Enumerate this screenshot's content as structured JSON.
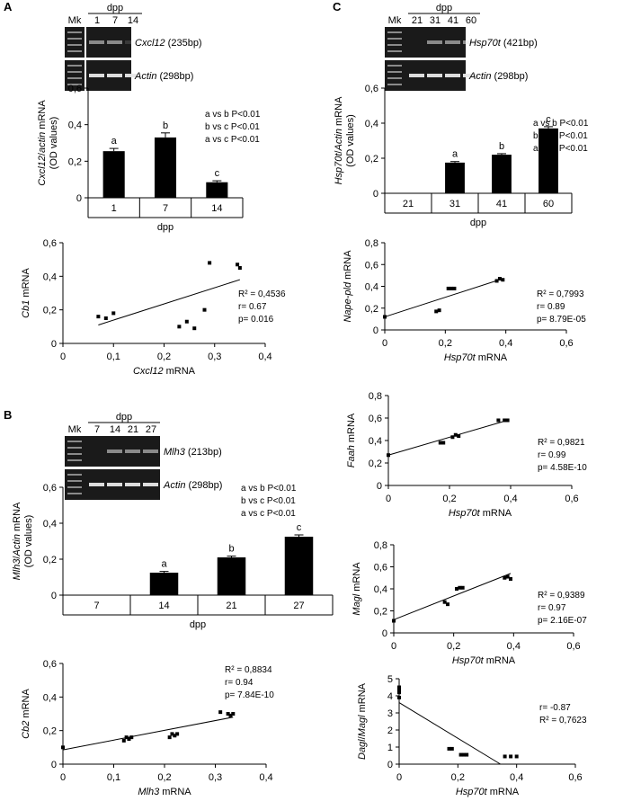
{
  "panels": {
    "a": "A",
    "b": "B",
    "c": "C"
  },
  "gels": [
    {
      "id": "gel-cxcl12",
      "marker": "Mk",
      "header": "dpp",
      "lanes": [
        "1",
        "7",
        "14"
      ],
      "bands": [
        {
          "gene": "Cxcl12",
          "size": " (235bp)"
        },
        {
          "gene": "Actin",
          "size": " (298bp)"
        }
      ]
    },
    {
      "id": "gel-mlh3",
      "marker": "Mk",
      "header": "dpp",
      "lanes": [
        "7",
        "14",
        "21",
        "27"
      ],
      "bands": [
        {
          "gene": "Mlh3",
          "size": " (213bp)"
        },
        {
          "gene": "Actin",
          "size": " (298bp)"
        }
      ]
    },
    {
      "id": "gel-hsp70t",
      "marker": "Mk",
      "header": "dpp",
      "lanes": [
        "21",
        "31",
        "41",
        "60"
      ],
      "bands": [
        {
          "gene": "Hsp70t",
          "size": " (421bp)"
        },
        {
          "gene": "Actin",
          "size": " (298bp)"
        }
      ]
    }
  ],
  "chart_data": [
    {
      "id": "bar-cxcl12",
      "type": "bar",
      "categories": [
        "1",
        "7",
        "14"
      ],
      "values": [
        0.255,
        0.33,
        0.085
      ],
      "errors": [
        0.015,
        0.025,
        0.008
      ],
      "letters": [
        "a",
        "b",
        "c"
      ],
      "xlabel": "dpp",
      "ylabel": [
        {
          "t": "Cxcl12",
          "i": true
        },
        {
          "t": "/",
          "i": false
        },
        {
          "t": "actin",
          "i": true
        },
        {
          "t": " mRNA",
          "i": false
        }
      ],
      "ylabel2": "(OD values)",
      "ylim": [
        0,
        0.6
      ],
      "yticks": [
        "0",
        "0,2",
        "0,4",
        "0,6"
      ],
      "stats": [
        "a vs b P<0.01",
        "b vs c P<0.01",
        "a vs c P<0.01"
      ]
    },
    {
      "id": "sc-cb1",
      "type": "scatter",
      "x": [
        0.07,
        0.085,
        0.1,
        0.23,
        0.245,
        0.26,
        0.28,
        0.29,
        0.345,
        0.35
      ],
      "y": [
        0.16,
        0.15,
        0.18,
        0.1,
        0.13,
        0.09,
        0.2,
        0.48,
        0.47,
        0.45
      ],
      "fit": [
        [
          0.07,
          0.11
        ],
        [
          0.35,
          0.38
        ]
      ],
      "xlabel": [
        {
          "t": "Cxcl12",
          "i": true
        },
        {
          "t": " mRNA",
          "i": false
        }
      ],
      "ylabel": [
        {
          "t": "Cb1",
          "i": true
        },
        {
          "t": " mRNA",
          "i": false
        }
      ],
      "xlim": [
        0,
        0.4
      ],
      "ylim": [
        0,
        0.6
      ],
      "xticks": [
        "0",
        "0,1",
        "0,2",
        "0,3",
        "0,4"
      ],
      "yticks": [
        "0",
        "0,2",
        "0,4",
        "0,6"
      ],
      "stats": [
        "R² = 0,4536",
        "r= 0.67",
        "p= 0.016"
      ]
    },
    {
      "id": "bar-mlh3",
      "type": "bar",
      "categories": [
        "7",
        "14",
        "21",
        "27"
      ],
      "values": [
        0,
        0.125,
        0.21,
        0.325
      ],
      "errors": [
        0,
        0.007,
        0.007,
        0.01
      ],
      "letters": [
        "",
        "a",
        "b",
        "c"
      ],
      "xlabel": "dpp",
      "ylabel": [
        {
          "t": "Mlh3",
          "i": true
        },
        {
          "t": "/",
          "i": false
        },
        {
          "t": "Actin",
          "i": true
        },
        {
          "t": " mRNA",
          "i": false
        }
      ],
      "ylabel2": "(OD values)",
      "ylim": [
        0,
        0.6
      ],
      "yticks": [
        "0",
        "0,2",
        "0,4",
        "0,6"
      ],
      "stats": [
        "a vs b P<0.01",
        "b vs c P<0.01",
        "a vs c P<0.01"
      ]
    },
    {
      "id": "sc-cb2",
      "type": "scatter",
      "x": [
        0,
        0.12,
        0.125,
        0.13,
        0.135,
        0.21,
        0.215,
        0.22,
        0.225,
        0.31,
        0.325,
        0.33,
        0.335
      ],
      "y": [
        0.1,
        0.14,
        0.16,
        0.15,
        0.16,
        0.16,
        0.18,
        0.17,
        0.18,
        0.31,
        0.3,
        0.29,
        0.3
      ],
      "fit": [
        [
          0,
          0.085
        ],
        [
          0.335,
          0.28
        ]
      ],
      "xlabel": [
        {
          "t": "Mlh3",
          "i": true
        },
        {
          "t": " mRNA",
          "i": false
        }
      ],
      "ylabel": [
        {
          "t": "Cb2",
          "i": true
        },
        {
          "t": " mRNA",
          "i": false
        }
      ],
      "xlim": [
        0,
        0.4
      ],
      "ylim": [
        0,
        0.6
      ],
      "xticks": [
        "0",
        "0,1",
        "0,2",
        "0,3",
        "0,4"
      ],
      "yticks": [
        "0",
        "0,2",
        "0,4",
        "0,6"
      ],
      "stats": [
        "R² = 0,8834",
        "r= 0.94",
        "p= 7.84E-10"
      ]
    },
    {
      "id": "bar-hsp70t",
      "type": "bar",
      "categories": [
        "21",
        "31",
        "41",
        "60"
      ],
      "values": [
        0,
        0.175,
        0.22,
        0.37
      ],
      "errors": [
        0,
        0.006,
        0.006,
        0.01
      ],
      "letters": [
        "",
        "a",
        "b",
        "c"
      ],
      "xlabel": "dpp",
      "ylabel": [
        {
          "t": "Hsp70t",
          "i": true
        },
        {
          "t": "/",
          "i": false
        },
        {
          "t": "Actin",
          "i": true
        },
        {
          "t": " mRNA",
          "i": false
        }
      ],
      "ylabel2": "(OD values)",
      "ylim": [
        0,
        0.6
      ],
      "yticks": [
        "0",
        "0,2",
        "0,4",
        "0,6"
      ],
      "stats": [
        "a vs b P<0.01",
        "b vs c P<0.01",
        "a vs c P<0.01"
      ]
    },
    {
      "id": "sc-nape",
      "type": "scatter",
      "x": [
        0,
        0.17,
        0.18,
        0.21,
        0.22,
        0.23,
        0.37,
        0.38,
        0.39
      ],
      "y": [
        0.12,
        0.17,
        0.18,
        0.38,
        0.38,
        0.38,
        0.45,
        0.47,
        0.46
      ],
      "fit": [
        [
          0,
          0.12
        ],
        [
          0.39,
          0.47
        ]
      ],
      "xlabel": [
        {
          "t": "Hsp70t",
          "i": true
        },
        {
          "t": " mRNA",
          "i": false
        }
      ],
      "ylabel": [
        {
          "t": "Nape-pld",
          "i": true
        },
        {
          "t": " mRNA",
          "i": false
        }
      ],
      "xlim": [
        0,
        0.6
      ],
      "ylim": [
        0,
        0.8
      ],
      "xticks": [
        "0",
        "0,2",
        "0,4",
        "0,6"
      ],
      "yticks": [
        "0",
        "0,2",
        "0,4",
        "0,6",
        "0,8"
      ],
      "stats": [
        "R² = 0,7993",
        "r= 0.89",
        "p= 8.79E-05"
      ]
    },
    {
      "id": "sc-faah",
      "type": "scatter",
      "x": [
        0,
        0.17,
        0.18,
        0.21,
        0.22,
        0.23,
        0.36,
        0.38,
        0.39
      ],
      "y": [
        0.27,
        0.38,
        0.38,
        0.43,
        0.45,
        0.44,
        0.58,
        0.58,
        0.58
      ],
      "fit": [
        [
          0,
          0.27
        ],
        [
          0.39,
          0.58
        ]
      ],
      "xlabel": [
        {
          "t": "Hsp70t",
          "i": true
        },
        {
          "t": " mRNA",
          "i": false
        }
      ],
      "ylabel": [
        {
          "t": "Faah",
          "i": true
        },
        {
          "t": " mRNA",
          "i": false
        }
      ],
      "xlim": [
        0,
        0.6
      ],
      "ylim": [
        0,
        0.8
      ],
      "xticks": [
        "0",
        "0,2",
        "0,4",
        "0,6"
      ],
      "yticks": [
        "0",
        "0,2",
        "0,4",
        "0,6",
        "0,8"
      ],
      "stats": [
        "R² = 0,9821",
        "r= 0.99",
        "p= 4.58E-10"
      ]
    },
    {
      "id": "sc-magl",
      "type": "scatter",
      "x": [
        0,
        0.17,
        0.18,
        0.21,
        0.22,
        0.23,
        0.37,
        0.38,
        0.39
      ],
      "y": [
        0.11,
        0.28,
        0.26,
        0.4,
        0.41,
        0.41,
        0.5,
        0.51,
        0.49
      ],
      "fit": [
        [
          0,
          0.12
        ],
        [
          0.39,
          0.54
        ]
      ],
      "xlabel": [
        {
          "t": "Hsp70t",
          "i": true
        },
        {
          "t": " mRNA",
          "i": false
        }
      ],
      "ylabel": [
        {
          "t": "Magl",
          "i": true
        },
        {
          "t": " mRNA",
          "i": false
        }
      ],
      "xlim": [
        0,
        0.6
      ],
      "ylim": [
        0,
        0.8
      ],
      "xticks": [
        "0",
        "0,2",
        "0,4",
        "0,6"
      ],
      "yticks": [
        "0",
        "0,2",
        "0,4",
        "0,6",
        "0,8"
      ],
      "stats": [
        "R² = 0,9389",
        "r= 0.97",
        "p= 2.16E-07"
      ]
    },
    {
      "id": "sc-dagl",
      "type": "scatter",
      "x": [
        0,
        0,
        0,
        0,
        0.17,
        0.18,
        0.21,
        0.22,
        0.23,
        0.36,
        0.38,
        0.4
      ],
      "y": [
        3.9,
        4.2,
        4.3,
        4.5,
        0.9,
        0.9,
        0.55,
        0.55,
        0.55,
        0.45,
        0.45,
        0.45
      ],
      "fit": [
        [
          0,
          3.6
        ],
        [
          0.345,
          0
        ]
      ],
      "xlabel": [
        {
          "t": "Hsp70t",
          "i": true
        },
        {
          "t": " mRNA",
          "i": false
        }
      ],
      "ylabel": [
        {
          "t": "Dagl",
          "i": true
        },
        {
          "t": "/",
          "i": false
        },
        {
          "t": "Magl",
          "i": true
        },
        {
          "t": " mRNA",
          "i": false
        }
      ],
      "xlim": [
        0,
        0.6
      ],
      "ylim": [
        0,
        5
      ],
      "xticks": [
        "0",
        "0,2",
        "0,4",
        "0,6"
      ],
      "yticks": [
        "0",
        "1",
        "2",
        "3",
        "4",
        "5"
      ],
      "stats": [
        "r= -0.87",
        "R² = 0,7623"
      ]
    }
  ]
}
